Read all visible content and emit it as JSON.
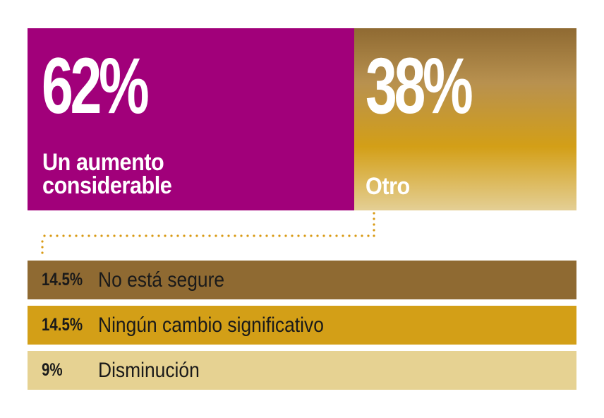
{
  "colors": {
    "main": "#a1007a",
    "other_top": "#8f6a32",
    "other_bottom": "#e4cf95",
    "bar_1": "#8f6a32",
    "bar_2": "#d39f17",
    "bar_3": "#e6d292",
    "dots": "#d99a14"
  },
  "chart_data": {
    "type": "bar",
    "title": "",
    "main_split": [
      {
        "label": "Un aumento\nconsiderable",
        "value": 62,
        "display": "62%"
      },
      {
        "label": "Otro",
        "value": 38,
        "display": "38%"
      }
    ],
    "other_breakdown": [
      {
        "label": "No está segure",
        "value": 14.5,
        "display": "14.5%"
      },
      {
        "label": "Ningún cambio significativo",
        "value": 14.5,
        "display": "14.5%"
      },
      {
        "label": "Disminución",
        "value": 9,
        "display": "9%"
      }
    ]
  }
}
